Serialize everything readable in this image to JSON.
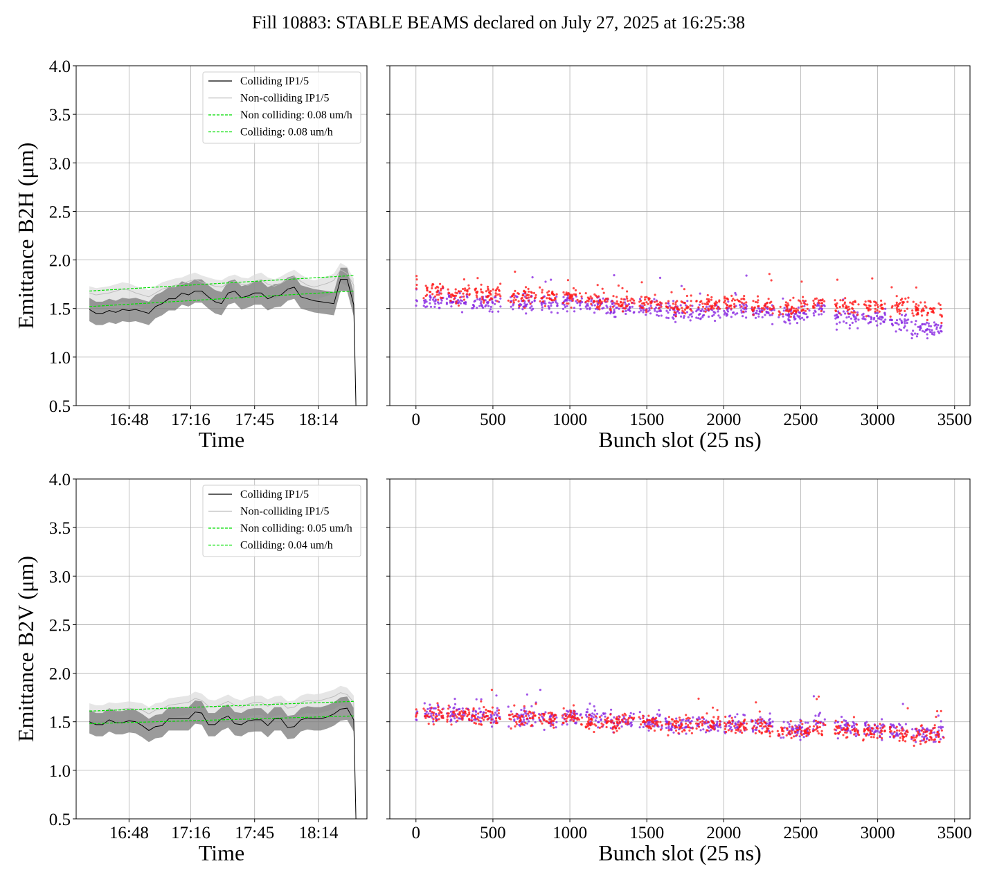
{
  "title": "Fill 10883: STABLE BEAMS declared on July 27, 2025 at 16:25:38",
  "colors": {
    "colliding": "#000000",
    "noncolliding": "#bdbdbd",
    "band_colliding": "#7a7a7a",
    "band_noncolliding": "#dcdcdc",
    "fit": "#00e000",
    "scatter_a": "#ff1a1a",
    "scatter_b": "#8a2be2",
    "grid": "#b0b0b0"
  },
  "chart_data": [
    {
      "type": "line",
      "panel": "top-left",
      "xlabel": "Time",
      "ylabel": "Emittance B2H (μm)",
      "ylim": [
        0.5,
        4.0
      ],
      "yticks": [
        "4.0",
        "3.5",
        "3.0",
        "2.5",
        "2.0",
        "1.5",
        "1.0",
        "0.5"
      ],
      "xticks": [
        "16:48",
        "17:16",
        "17:45",
        "18:14"
      ],
      "x": [
        "16:30",
        "16:33",
        "16:36",
        "16:39",
        "16:42",
        "16:45",
        "16:48",
        "16:51",
        "16:54",
        "16:57",
        "17:00",
        "17:03",
        "17:06",
        "17:09",
        "17:12",
        "17:15",
        "17:18",
        "17:21",
        "17:24",
        "17:27",
        "17:30",
        "17:33",
        "17:36",
        "17:39",
        "17:42",
        "17:45",
        "17:48",
        "17:51",
        "17:54",
        "17:57",
        "18:00",
        "18:03",
        "18:06",
        "18:09",
        "18:12",
        "18:15",
        "18:18",
        "18:21",
        "18:24",
        "18:27",
        "18:30",
        "18:31"
      ],
      "series": [
        {
          "name": "Colliding IP1/5",
          "values": [
            1.49,
            1.45,
            1.45,
            1.48,
            1.46,
            1.49,
            1.48,
            1.49,
            1.47,
            1.45,
            1.52,
            1.55,
            1.6,
            1.6,
            1.66,
            1.64,
            1.68,
            1.68,
            1.62,
            1.57,
            1.55,
            1.66,
            1.68,
            1.61,
            1.63,
            1.66,
            1.66,
            1.6,
            1.63,
            1.64,
            1.7,
            1.72,
            1.62,
            1.6,
            1.58,
            1.57,
            1.56,
            1.55,
            1.8,
            1.8,
            1.54,
            0.5
          ]
        },
        {
          "name": "Non-colliding IP1/5",
          "values": [
            1.66,
            1.64,
            1.65,
            1.66,
            1.68,
            1.7,
            1.69,
            1.66,
            1.64,
            1.62,
            1.66,
            1.7,
            1.72,
            1.74,
            1.75,
            1.78,
            1.8,
            1.77,
            1.75,
            1.73,
            1.72,
            1.76,
            1.78,
            1.75,
            1.74,
            1.78,
            1.8,
            1.75,
            1.73,
            1.76,
            1.8,
            1.83,
            1.78,
            1.74,
            1.72,
            1.74,
            1.76,
            1.79,
            1.9,
            1.86,
            1.74,
            0.5
          ]
        },
        {
          "name": "Non colliding: 0.08 um/h",
          "values_fit": [
            1.68,
            1.84
          ]
        },
        {
          "name": "Colliding: 0.08 um/h",
          "values_fit": [
            1.52,
            1.68
          ]
        }
      ]
    },
    {
      "type": "scatter",
      "panel": "top-right",
      "xlabel": "Bunch slot (25 ns)",
      "ylim": [
        0.5,
        4.0
      ],
      "xlim": [
        -170,
        3600
      ],
      "xticks": [
        "0",
        "500",
        "1000",
        "1500",
        "2000",
        "2500",
        "3000",
        "3500"
      ],
      "groups": [
        {
          "x0": 0,
          "x1": 10,
          "a": 1.7,
          "b": 1.62
        },
        {
          "x0": 50,
          "x1": 180,
          "a": 1.68,
          "b": 1.58
        },
        {
          "x0": 200,
          "x1": 350,
          "a": 1.65,
          "b": 1.58
        },
        {
          "x0": 360,
          "x1": 550,
          "a": 1.66,
          "b": 1.56
        },
        {
          "x0": 600,
          "x1": 780,
          "a": 1.62,
          "b": 1.56
        },
        {
          "x0": 800,
          "x1": 920,
          "a": 1.63,
          "b": 1.55
        },
        {
          "x0": 950,
          "x1": 1080,
          "a": 1.62,
          "b": 1.55
        },
        {
          "x0": 1100,
          "x1": 1250,
          "a": 1.6,
          "b": 1.55
        },
        {
          "x0": 1260,
          "x1": 1420,
          "a": 1.56,
          "b": 1.5
        },
        {
          "x0": 1450,
          "x1": 1600,
          "a": 1.55,
          "b": 1.5
        },
        {
          "x0": 1620,
          "x1": 1800,
          "a": 1.53,
          "b": 1.48
        },
        {
          "x0": 1820,
          "x1": 1980,
          "a": 1.55,
          "b": 1.48
        },
        {
          "x0": 2000,
          "x1": 2150,
          "a": 1.56,
          "b": 1.48
        },
        {
          "x0": 2180,
          "x1": 2330,
          "a": 1.52,
          "b": 1.46
        },
        {
          "x0": 2350,
          "x1": 2560,
          "a": 1.5,
          "b": 1.43
        },
        {
          "x0": 2580,
          "x1": 2660,
          "a": 1.55,
          "b": 1.5
        },
        {
          "x0": 2720,
          "x1": 2880,
          "a": 1.52,
          "b": 1.4
        },
        {
          "x0": 2900,
          "x1": 3050,
          "a": 1.52,
          "b": 1.4
        },
        {
          "x0": 3080,
          "x1": 3200,
          "a": 1.53,
          "b": 1.36
        },
        {
          "x0": 3220,
          "x1": 3430,
          "a": 1.47,
          "b": 1.3
        }
      ]
    },
    {
      "type": "line",
      "panel": "bottom-left",
      "xlabel": "Time",
      "ylabel": "Emittance B2V (μm)",
      "ylim": [
        0.5,
        4.0
      ],
      "yticks": [
        "4.0",
        "3.5",
        "3.0",
        "2.5",
        "2.0",
        "1.5",
        "1.0",
        "0.5"
      ],
      "xticks": [
        "16:48",
        "17:16",
        "17:45",
        "18:14"
      ],
      "x": [
        "16:30",
        "16:33",
        "16:36",
        "16:39",
        "16:42",
        "16:45",
        "16:48",
        "16:51",
        "16:54",
        "16:57",
        "17:00",
        "17:03",
        "17:06",
        "17:09",
        "17:12",
        "17:15",
        "17:18",
        "17:21",
        "17:24",
        "17:27",
        "17:30",
        "17:33",
        "17:36",
        "17:39",
        "17:42",
        "17:45",
        "17:48",
        "17:51",
        "17:54",
        "17:57",
        "18:00",
        "18:03",
        "18:06",
        "18:09",
        "18:12",
        "18:15",
        "18:18",
        "18:21",
        "18:24",
        "18:27",
        "18:30",
        "18:31"
      ],
      "series": [
        {
          "name": "Colliding IP1/5",
          "values": [
            1.5,
            1.47,
            1.47,
            1.52,
            1.49,
            1.49,
            1.51,
            1.5,
            1.46,
            1.41,
            1.45,
            1.46,
            1.53,
            1.53,
            1.53,
            1.53,
            1.6,
            1.59,
            1.47,
            1.47,
            1.53,
            1.56,
            1.48,
            1.47,
            1.51,
            1.52,
            1.52,
            1.46,
            1.53,
            1.53,
            1.44,
            1.45,
            1.52,
            1.54,
            1.53,
            1.53,
            1.55,
            1.58,
            1.63,
            1.64,
            1.52,
            0.5
          ]
        },
        {
          "name": "Non-colliding IP1/5",
          "values": [
            1.62,
            1.6,
            1.6,
            1.63,
            1.62,
            1.63,
            1.64,
            1.63,
            1.62,
            1.58,
            1.62,
            1.63,
            1.67,
            1.68,
            1.69,
            1.7,
            1.74,
            1.72,
            1.66,
            1.65,
            1.68,
            1.71,
            1.67,
            1.65,
            1.68,
            1.7,
            1.7,
            1.66,
            1.69,
            1.7,
            1.64,
            1.65,
            1.7,
            1.72,
            1.71,
            1.72,
            1.74,
            1.76,
            1.8,
            1.78,
            1.7,
            0.5
          ]
        },
        {
          "name": "Non colliding: 0.05 um/h",
          "values_fit": [
            1.61,
            1.71
          ]
        },
        {
          "name": "Colliding: 0.04 um/h",
          "values_fit": [
            1.48,
            1.56
          ]
        }
      ]
    },
    {
      "type": "scatter",
      "panel": "bottom-right",
      "xlabel": "Bunch slot (25 ns)",
      "ylim": [
        0.5,
        4.0
      ],
      "xlim": [
        -170,
        3600
      ],
      "xticks": [
        "0",
        "500",
        "1000",
        "1500",
        "2000",
        "2500",
        "3000",
        "3500"
      ],
      "groups": [
        {
          "x0": 0,
          "x1": 10,
          "a": 1.6,
          "b": 1.58
        },
        {
          "x0": 50,
          "x1": 180,
          "a": 1.58,
          "b": 1.6
        },
        {
          "x0": 200,
          "x1": 350,
          "a": 1.56,
          "b": 1.58
        },
        {
          "x0": 360,
          "x1": 550,
          "a": 1.55,
          "b": 1.56
        },
        {
          "x0": 600,
          "x1": 780,
          "a": 1.54,
          "b": 1.55
        },
        {
          "x0": 800,
          "x1": 920,
          "a": 1.52,
          "b": 1.52
        },
        {
          "x0": 950,
          "x1": 1080,
          "a": 1.55,
          "b": 1.56
        },
        {
          "x0": 1100,
          "x1": 1250,
          "a": 1.5,
          "b": 1.55
        },
        {
          "x0": 1260,
          "x1": 1420,
          "a": 1.49,
          "b": 1.5
        },
        {
          "x0": 1450,
          "x1": 1600,
          "a": 1.48,
          "b": 1.49
        },
        {
          "x0": 1620,
          "x1": 1800,
          "a": 1.47,
          "b": 1.47
        },
        {
          "x0": 1820,
          "x1": 1980,
          "a": 1.47,
          "b": 1.47
        },
        {
          "x0": 2000,
          "x1": 2150,
          "a": 1.46,
          "b": 1.47
        },
        {
          "x0": 2180,
          "x1": 2330,
          "a": 1.44,
          "b": 1.46
        },
        {
          "x0": 2350,
          "x1": 2560,
          "a": 1.41,
          "b": 1.42
        },
        {
          "x0": 2580,
          "x1": 2660,
          "a": 1.45,
          "b": 1.5
        },
        {
          "x0": 2720,
          "x1": 2880,
          "a": 1.42,
          "b": 1.44
        },
        {
          "x0": 2900,
          "x1": 3050,
          "a": 1.39,
          "b": 1.41
        },
        {
          "x0": 3080,
          "x1": 3200,
          "a": 1.38,
          "b": 1.4
        },
        {
          "x0": 3220,
          "x1": 3430,
          "a": 1.36,
          "b": 1.38
        }
      ]
    }
  ]
}
